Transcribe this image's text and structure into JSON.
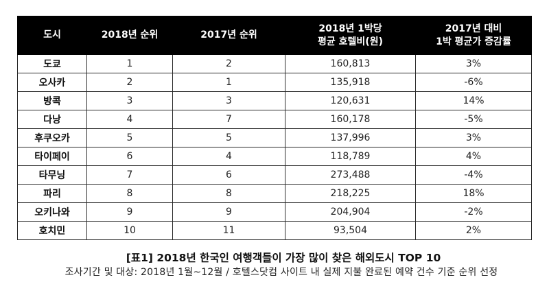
{
  "table": {
    "headers": [
      {
        "lines": [
          "도시"
        ]
      },
      {
        "lines": [
          "2018년 순위"
        ]
      },
      {
        "lines": [
          "2017년 순위"
        ]
      },
      {
        "lines": [
          "2018년 1박당",
          "평균 호텔비(원)"
        ]
      },
      {
        "lines": [
          "2017년 대비",
          "1박 평균가 증감률"
        ]
      }
    ],
    "rows": [
      {
        "city": "도쿄",
        "rank_2018": "1",
        "rank_2017": "2",
        "avg_price": "160,813",
        "change": "3%"
      },
      {
        "city": "오사카",
        "rank_2018": "2",
        "rank_2017": "1",
        "avg_price": "135,918",
        "change": "-6%"
      },
      {
        "city": "방콕",
        "rank_2018": "3",
        "rank_2017": "3",
        "avg_price": "120,631",
        "change": "14%"
      },
      {
        "city": "다낭",
        "rank_2018": "4",
        "rank_2017": "7",
        "avg_price": "160,178",
        "change": "-5%"
      },
      {
        "city": "후쿠오카",
        "rank_2018": "5",
        "rank_2017": "5",
        "avg_price": "137,996",
        "change": "3%"
      },
      {
        "city": "타이페이",
        "rank_2018": "6",
        "rank_2017": "4",
        "avg_price": "118,789",
        "change": "4%"
      },
      {
        "city": "타무닝",
        "rank_2018": "7",
        "rank_2017": "6",
        "avg_price": "273,488",
        "change": "-4%"
      },
      {
        "city": "파리",
        "rank_2018": "8",
        "rank_2017": "8",
        "avg_price": "218,225",
        "change": "18%"
      },
      {
        "city": "오키나와",
        "rank_2018": "9",
        "rank_2017": "9",
        "avg_price": "204,904",
        "change": "-2%"
      },
      {
        "city": "호치민",
        "rank_2018": "10",
        "rank_2017": "11",
        "avg_price": "93,504",
        "change": "2%"
      }
    ]
  },
  "caption": {
    "title": "[표1] 2018년 한국인 여행객들이 가장 많이 찾은 해외도시 TOP 10",
    "note": "조사기간 및 대상: 2018년 1월~12월 / 호텔스닷컴 사이트 내 실제 지불 완료된 예약 건수 기준 순위 선정"
  }
}
